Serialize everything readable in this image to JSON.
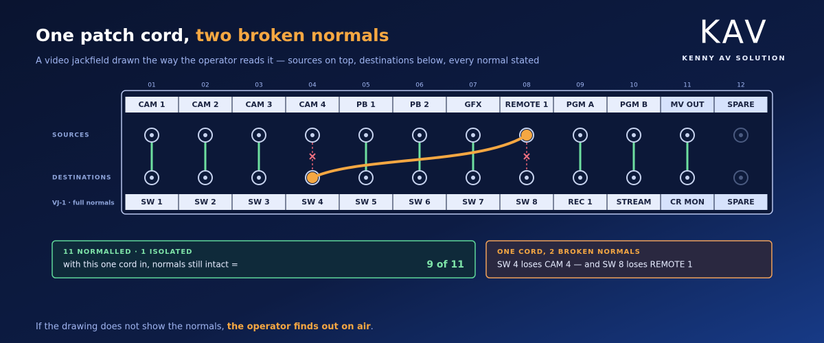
{
  "header": {
    "title_lead": "One patch cord, ",
    "title_accent": "two broken normals",
    "subtitle": "A video jackfield drawn the way the operator reads it — sources on top, destinations below, every normal stated"
  },
  "logo": {
    "mark": "KAV",
    "tagline": "KENNY AV SOLUTION"
  },
  "rows": {
    "sources": "SOURCES",
    "destinations": "DESTINATIONS",
    "field": "VJ-1 · full normals"
  },
  "columns": [
    {
      "number": "01",
      "source": "CAM 1",
      "destination": "SW 1"
    },
    {
      "number": "02",
      "source": "CAM 2",
      "destination": "SW 2"
    },
    {
      "number": "03",
      "source": "CAM 3",
      "destination": "SW 3"
    },
    {
      "number": "04",
      "source": "CAM 4",
      "destination": "SW 4"
    },
    {
      "number": "05",
      "source": "PB 1",
      "destination": "SW 5"
    },
    {
      "number": "06",
      "source": "PB 2",
      "destination": "SW 6"
    },
    {
      "number": "07",
      "source": "GFX",
      "destination": "SW 7"
    },
    {
      "number": "08",
      "source": "REMOTE 1",
      "destination": "SW 8"
    },
    {
      "number": "09",
      "source": "PGM A",
      "destination": "REC 1"
    },
    {
      "number": "10",
      "source": "PGM B",
      "destination": "STREAM"
    },
    {
      "number": "11",
      "source": "MV OUT",
      "destination": "CR MON"
    },
    {
      "number": "12",
      "source": "SPARE",
      "destination": "SPARE"
    }
  ],
  "cards": [
    {
      "heading": "11 NORMALLED · 1 ISOLATED",
      "text": "with this one cord in, normals still intact =",
      "result": "9 of 11"
    },
    {
      "heading": "ONE CORD, 2 BROKEN NORMALS",
      "text": "SW 4 loses CAM 4 — and SW 8 loses REMOTE 1"
    }
  ],
  "footer": {
    "text": "If the drawing does not show the normals, ",
    "highlight": "the operator finds out on air",
    "end": "."
  }
}
